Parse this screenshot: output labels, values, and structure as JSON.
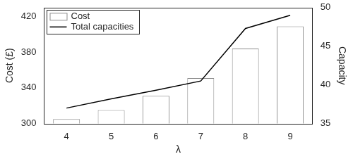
{
  "chart_data": {
    "type": "bar",
    "categories": [
      4,
      5,
      6,
      7,
      8,
      9
    ],
    "x_label": "λ",
    "y_label": "Cost (£)",
    "y2_label": "Capacity",
    "series": [
      {
        "name": "Cost",
        "type": "bar",
        "color": "#ffffff",
        "values": [
          305,
          315,
          331,
          351,
          384,
          409
        ]
      },
      {
        "name": "Total capacities",
        "type": "line",
        "color": "#000000",
        "axis": "y2",
        "values": [
          37,
          38.2,
          39.3,
          40.5,
          47.3,
          49
        ]
      }
    ],
    "ylim": [
      300,
      430
    ],
    "yticks": [
      300,
      340,
      380,
      420
    ],
    "y2lim": [
      35,
      50
    ],
    "y2ticks": [
      35,
      40,
      45,
      50
    ],
    "grid": false,
    "legend": "upper left"
  }
}
